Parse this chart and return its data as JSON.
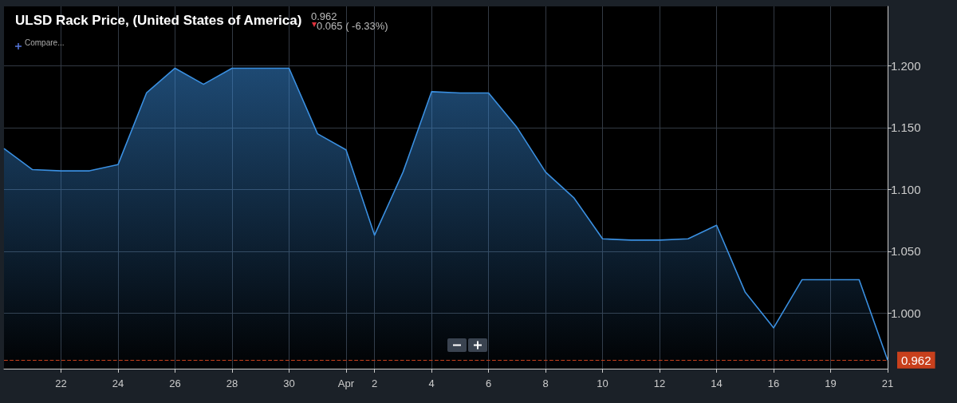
{
  "chart_data": {
    "type": "area",
    "title": "ULSD Rack Price, (United States of America)",
    "annotations": [
      "0.962",
      "0.065 ( -6.33%)",
      "Compare..."
    ],
    "categories": [
      null,
      null,
      "22",
      null,
      "24",
      null,
      "26",
      null,
      "28",
      null,
      "30",
      null,
      "Apr",
      "2",
      null,
      "4",
      null,
      "6",
      null,
      "8",
      null,
      "10",
      null,
      "12",
      null,
      "14",
      null,
      "16",
      null,
      "19",
      null,
      "21"
    ],
    "series": [
      {
        "color": "#3a8fe0",
        "values": [
          1.133,
          1.116,
          1.115,
          1.115,
          1.12,
          1.178,
          1.198,
          1.185,
          1.198,
          1.198,
          1.198,
          1.145,
          1.132,
          1.063,
          1.114,
          1.179,
          1.178,
          1.178,
          1.15,
          1.114,
          1.093,
          1.06,
          1.059,
          1.059,
          1.06,
          1.071,
          1.017,
          0.988,
          1.027,
          1.027,
          1.027,
          0.962
        ]
      }
    ],
    "ylim": [
      0.955,
      1.248
    ],
    "yticks": [
      {
        "value": 1.0,
        "label": "1.000"
      },
      {
        "value": 1.05,
        "label": "1.050"
      },
      {
        "value": 1.1,
        "label": "1.100"
      },
      {
        "value": 1.15,
        "label": "1.150"
      },
      {
        "value": 1.2,
        "label": "1.200"
      }
    ],
    "ref_lines": [
      {
        "axis": "y",
        "value": 0.962,
        "label": "0.962",
        "color": "#c8401c",
        "line_style": "dashed"
      }
    ],
    "grid": true,
    "marker": "none",
    "line_style": "solid"
  }
}
